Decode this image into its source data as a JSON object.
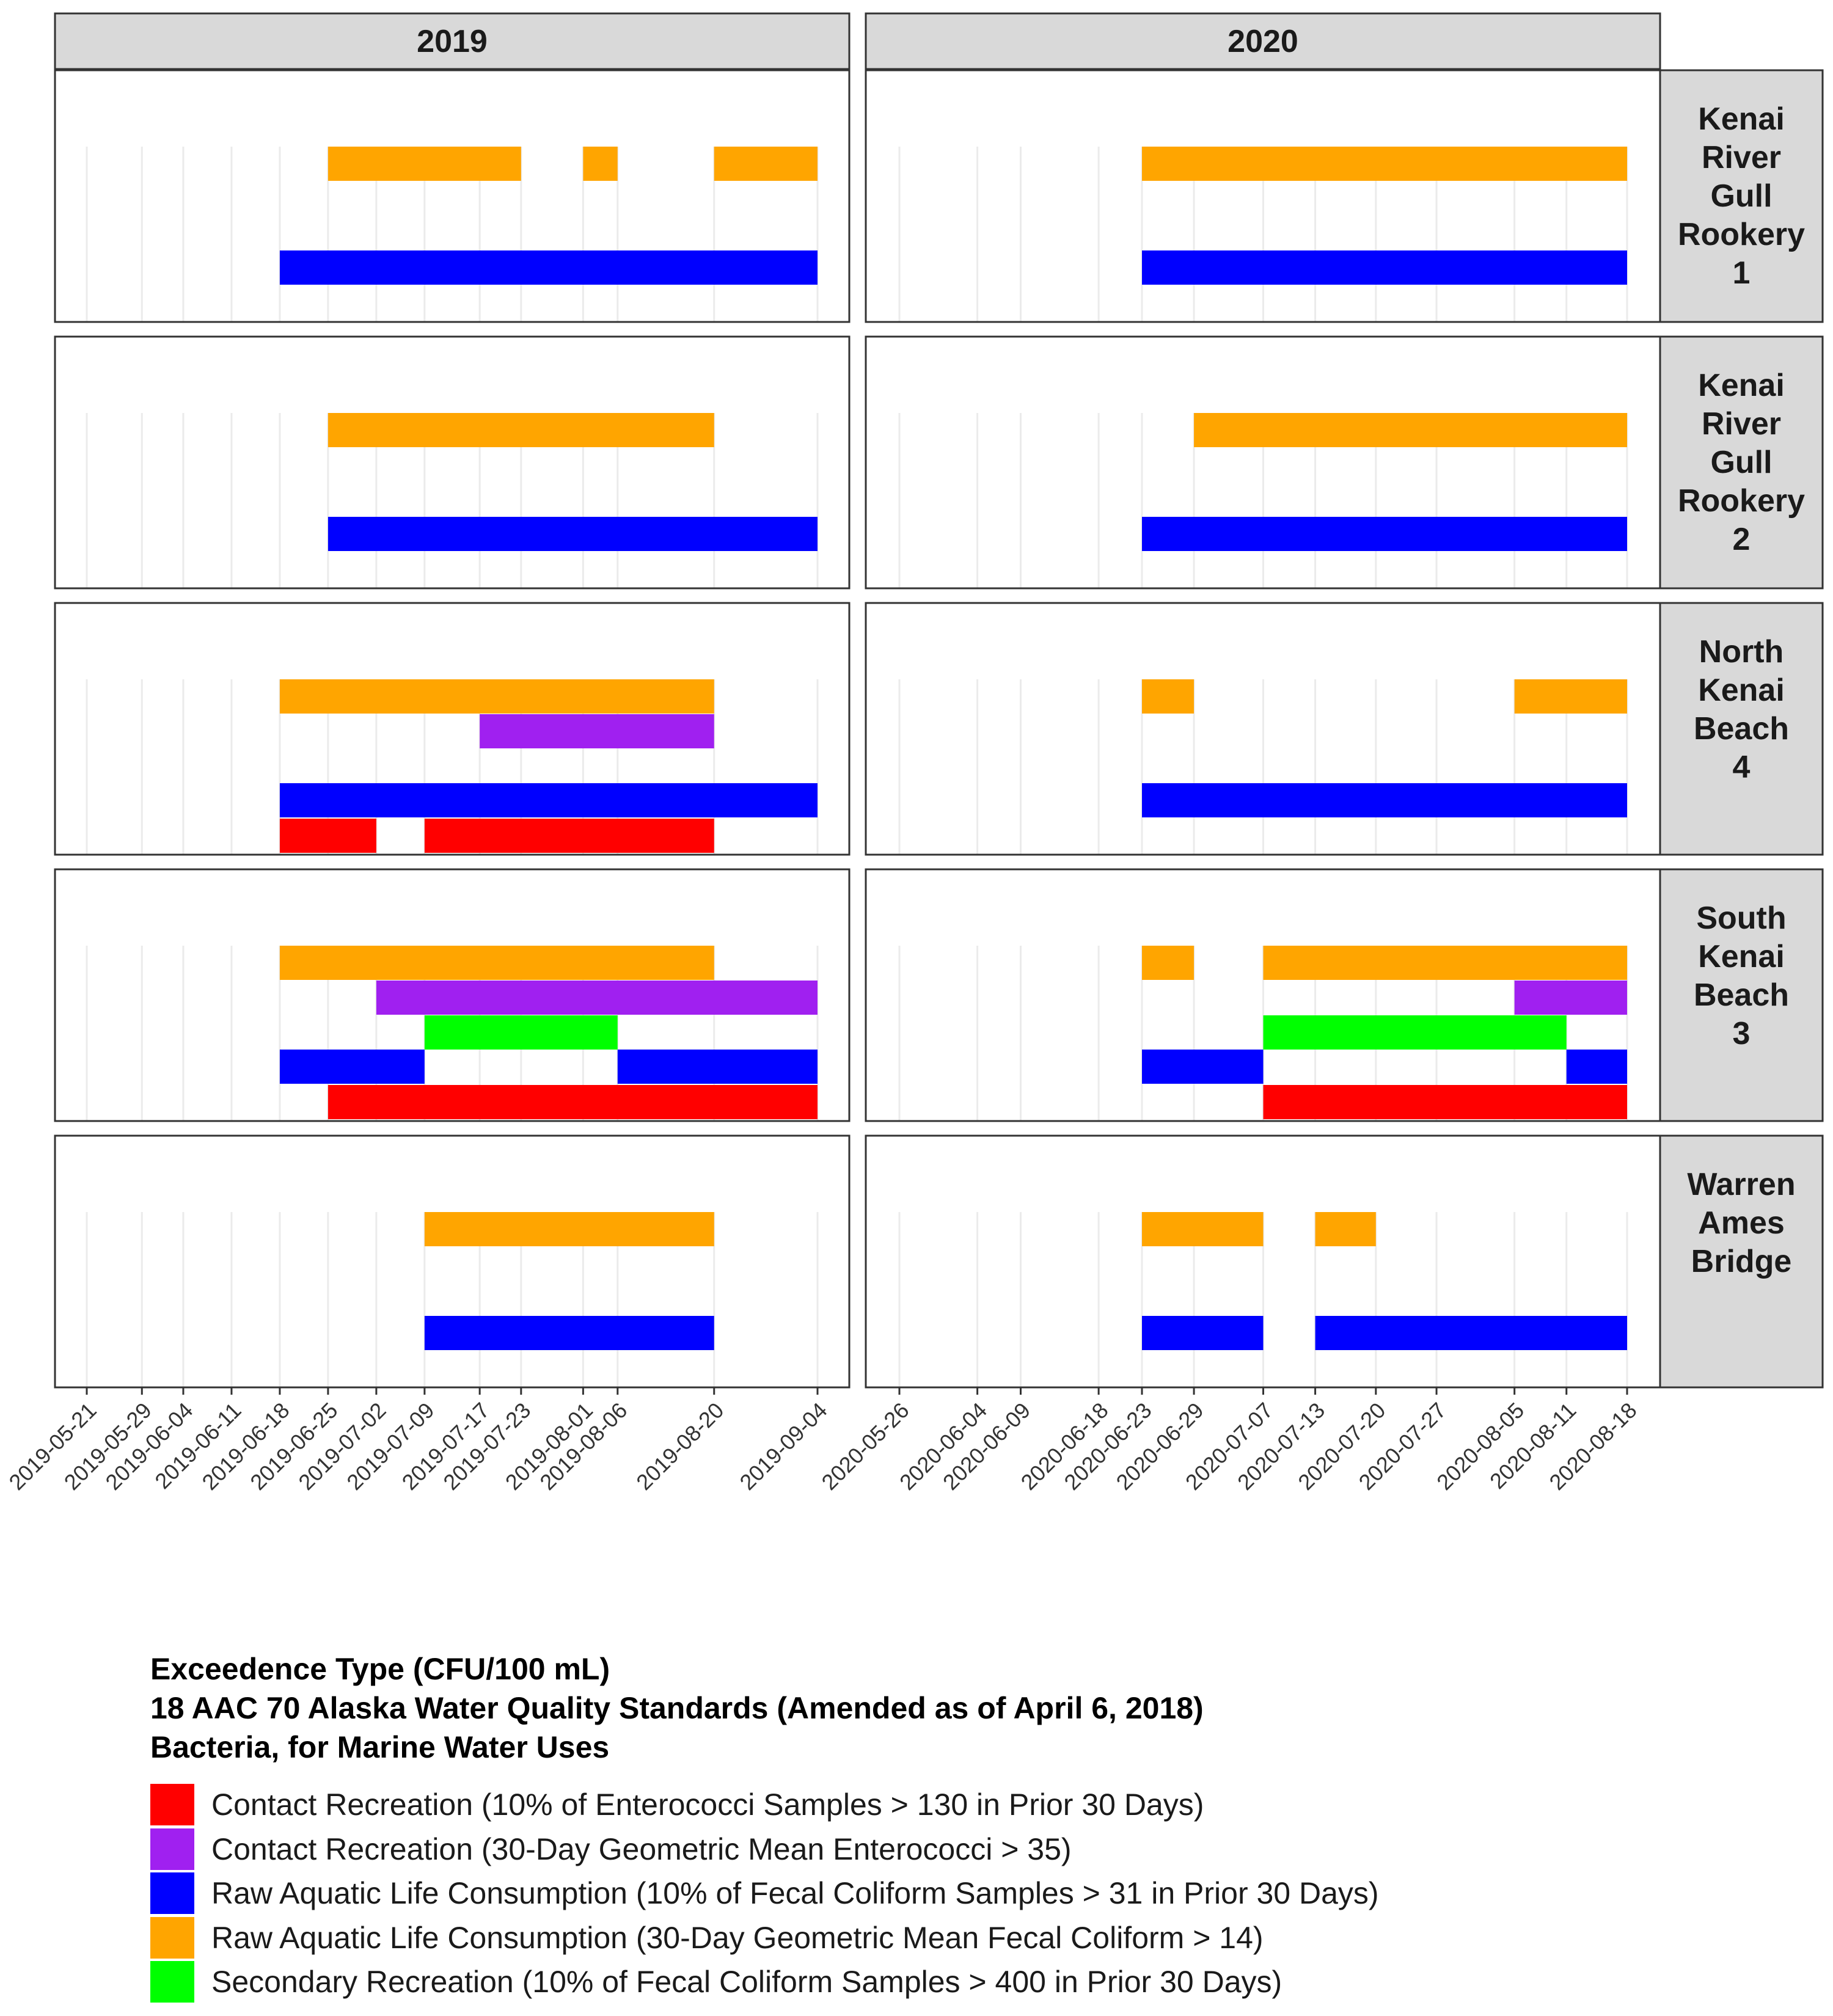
{
  "legend": {
    "title_lines": [
      "Exceedence Type (CFU/100 mL)",
      "18 AAC 70 Alaska Water Quality Standards (Amended as of April 6, 2018)",
      "Bacteria, for Marine Water Uses"
    ]
  },
  "chart_data": {
    "type": "gantt-facet",
    "column_facets": [
      "2019",
      "2020"
    ],
    "row_facets": [
      "Kenai River Gull Rookery 1",
      "Kenai River Gull Rookery 2",
      "North Kenai Beach 4",
      "South Kenai Beach 3",
      "Warren Ames Bridge"
    ],
    "row_facet_labels": [
      [
        "Kenai",
        "River",
        "Gull",
        "Rookery",
        "1"
      ],
      [
        "Kenai",
        "River",
        "Gull",
        "Rookery",
        "2"
      ],
      [
        "North",
        "Kenai",
        "Beach",
        "4"
      ],
      [
        "South",
        "Kenai",
        "Beach",
        "3"
      ],
      [
        "Warren",
        "Ames",
        "Bridge"
      ]
    ],
    "x_ticks": {
      "2019": [
        "2019-05-21",
        "2019-05-29",
        "2019-06-04",
        "2019-06-11",
        "2019-06-18",
        "2019-06-25",
        "2019-07-02",
        "2019-07-09",
        "2019-07-17",
        "2019-07-23",
        "2019-08-01",
        "2019-08-06",
        "2019-08-20",
        "2019-09-04"
      ],
      "2020": [
        "2020-05-26",
        "2020-06-04",
        "2020-06-09",
        "2020-06-18",
        "2020-06-23",
        "2020-06-29",
        "2020-07-07",
        "2020-07-13",
        "2020-07-20",
        "2020-07-27",
        "2020-08-05",
        "2020-08-11",
        "2020-08-18"
      ]
    },
    "categories": [
      {
        "key": "contact_entero_10pct",
        "label": "Contact Recreation (10% of Enterococci Samples > 130 in Prior 30 Days)",
        "color": "#ff0000",
        "level": 0
      },
      {
        "key": "raw_fecal_10pct",
        "label": "Raw Aquatic Life Consumption (10% of Fecal Coliform Samples > 31 in Prior 30 Days)",
        "color": "#0000ff",
        "level": 1
      },
      {
        "key": "secondary_fecal_10pct",
        "label": "Secondary Recreation (10% of Fecal Coliform Samples > 400 in Prior 30 Days)",
        "color": "#00ff00",
        "level": 2
      },
      {
        "key": "contact_entero_gm",
        "label": "Contact Recreation (30-Day Geometric Mean Enterococci > 35)",
        "color": "#a020f0",
        "level": 3
      },
      {
        "key": "raw_fecal_gm",
        "label": "Raw Aquatic Life Consumption (30-Day Geometric Mean Fecal Coliform > 14)",
        "color": "#ffa500",
        "level": 4
      }
    ],
    "legend_order": [
      "contact_entero_10pct",
      "contact_entero_gm",
      "raw_fecal_10pct",
      "raw_fecal_gm",
      "secondary_fecal_10pct"
    ],
    "legend_position": "bottom-left",
    "bars": {
      "Kenai River Gull Rookery 1": {
        "2019": [
          {
            "type": "raw_fecal_gm",
            "start": "2019-06-25",
            "end": "2019-07-23"
          },
          {
            "type": "raw_fecal_gm",
            "start": "2019-08-01",
            "end": "2019-08-06"
          },
          {
            "type": "raw_fecal_gm",
            "start": "2019-08-20",
            "end": "2019-09-04"
          },
          {
            "type": "raw_fecal_10pct",
            "start": "2019-06-18",
            "end": "2019-09-04"
          }
        ],
        "2020": [
          {
            "type": "raw_fecal_gm",
            "start": "2020-06-23",
            "end": "2020-08-18"
          },
          {
            "type": "raw_fecal_10pct",
            "start": "2020-06-23",
            "end": "2020-08-18"
          }
        ]
      },
      "Kenai River Gull Rookery 2": {
        "2019": [
          {
            "type": "raw_fecal_gm",
            "start": "2019-06-25",
            "end": "2019-08-20"
          },
          {
            "type": "raw_fecal_10pct",
            "start": "2019-06-25",
            "end": "2019-09-04"
          }
        ],
        "2020": [
          {
            "type": "raw_fecal_gm",
            "start": "2020-06-29",
            "end": "2020-08-18"
          },
          {
            "type": "raw_fecal_10pct",
            "start": "2020-06-23",
            "end": "2020-08-18"
          }
        ]
      },
      "North Kenai Beach 4": {
        "2019": [
          {
            "type": "raw_fecal_gm",
            "start": "2019-06-18",
            "end": "2019-08-20"
          },
          {
            "type": "contact_entero_gm",
            "start": "2019-07-17",
            "end": "2019-08-20"
          },
          {
            "type": "raw_fecal_10pct",
            "start": "2019-06-18",
            "end": "2019-09-04"
          },
          {
            "type": "contact_entero_10pct",
            "start": "2019-06-18",
            "end": "2019-07-02"
          },
          {
            "type": "contact_entero_10pct",
            "start": "2019-07-09",
            "end": "2019-08-20"
          }
        ],
        "2020": [
          {
            "type": "raw_fecal_gm",
            "start": "2020-06-23",
            "end": "2020-06-29"
          },
          {
            "type": "raw_fecal_gm",
            "start": "2020-08-05",
            "end": "2020-08-18"
          },
          {
            "type": "raw_fecal_10pct",
            "start": "2020-06-23",
            "end": "2020-08-18"
          }
        ]
      },
      "South Kenai Beach 3": {
        "2019": [
          {
            "type": "raw_fecal_gm",
            "start": "2019-06-18",
            "end": "2019-08-20"
          },
          {
            "type": "contact_entero_gm",
            "start": "2019-07-02",
            "end": "2019-09-04"
          },
          {
            "type": "secondary_fecal_10pct",
            "start": "2019-07-09",
            "end": "2019-08-06"
          },
          {
            "type": "raw_fecal_10pct",
            "start": "2019-06-18",
            "end": "2019-07-09"
          },
          {
            "type": "raw_fecal_10pct",
            "start": "2019-08-06",
            "end": "2019-09-04"
          },
          {
            "type": "contact_entero_10pct",
            "start": "2019-06-25",
            "end": "2019-09-04"
          }
        ],
        "2020": [
          {
            "type": "raw_fecal_gm",
            "start": "2020-06-23",
            "end": "2020-06-29"
          },
          {
            "type": "raw_fecal_gm",
            "start": "2020-07-07",
            "end": "2020-08-18"
          },
          {
            "type": "contact_entero_gm",
            "start": "2020-08-05",
            "end": "2020-08-18"
          },
          {
            "type": "secondary_fecal_10pct",
            "start": "2020-07-07",
            "end": "2020-08-11"
          },
          {
            "type": "raw_fecal_10pct",
            "start": "2020-06-23",
            "end": "2020-07-07"
          },
          {
            "type": "raw_fecal_10pct",
            "start": "2020-08-11",
            "end": "2020-08-18"
          },
          {
            "type": "contact_entero_10pct",
            "start": "2020-07-07",
            "end": "2020-08-18"
          }
        ]
      },
      "Warren Ames Bridge": {
        "2019": [
          {
            "type": "raw_fecal_gm",
            "start": "2019-07-09",
            "end": "2019-08-20"
          },
          {
            "type": "raw_fecal_10pct",
            "start": "2019-07-09",
            "end": "2019-08-20"
          }
        ],
        "2020": [
          {
            "type": "raw_fecal_gm",
            "start": "2020-06-23",
            "end": "2020-07-07"
          },
          {
            "type": "raw_fecal_gm",
            "start": "2020-07-13",
            "end": "2020-07-20"
          },
          {
            "type": "raw_fecal_10pct",
            "start": "2020-06-23",
            "end": "2020-07-07"
          },
          {
            "type": "raw_fecal_10pct",
            "start": "2020-07-13",
            "end": "2020-08-18"
          }
        ]
      }
    }
  }
}
